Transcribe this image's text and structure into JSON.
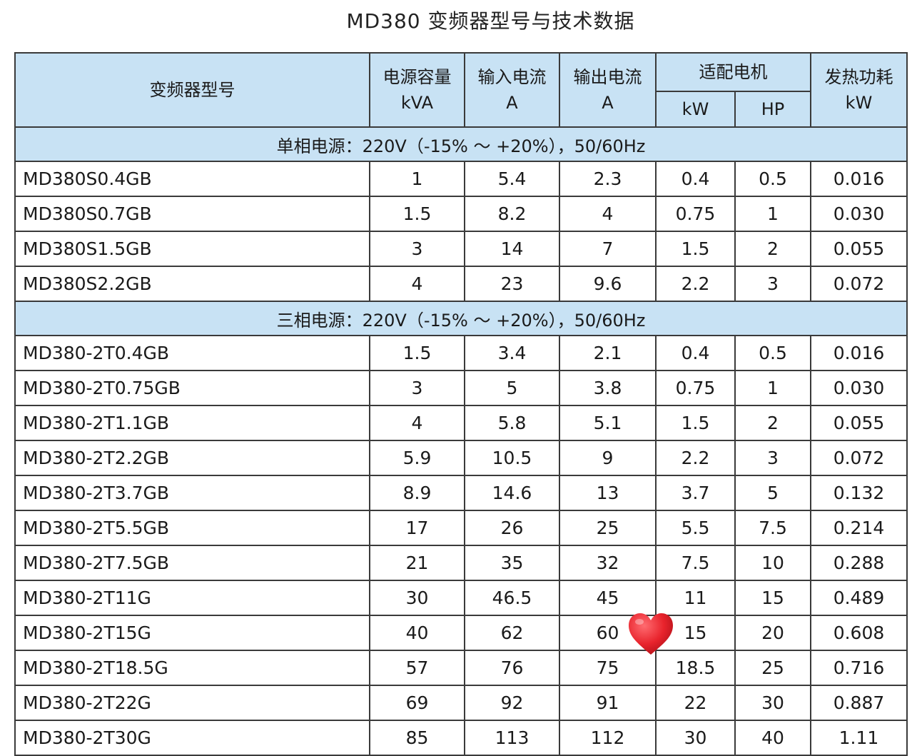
{
  "title": "MD380 变频器型号与技术数据",
  "header": {
    "model": "变频器型号",
    "capacity": [
      "电源容量",
      "kVA"
    ],
    "input_current": [
      "输入电流",
      "A"
    ],
    "output_current": [
      "输出电流",
      "A"
    ],
    "motor": "适配电机",
    "motor_kw": "kW",
    "motor_hp": "HP",
    "heat": [
      "发热功耗",
      "kW"
    ]
  },
  "sections": [
    {
      "label": "单相电源：220V（-15% ～ +20%），50/60Hz",
      "rows": [
        [
          "MD380S0.4GB",
          "1",
          "5.4",
          "2.3",
          "0.4",
          "0.5",
          "0.016"
        ],
        [
          "MD380S0.7GB",
          "1.5",
          "8.2",
          "4",
          "0.75",
          "1",
          "0.030"
        ],
        [
          "MD380S1.5GB",
          "3",
          "14",
          "7",
          "1.5",
          "2",
          "0.055"
        ],
        [
          "MD380S2.2GB",
          "4",
          "23",
          "9.6",
          "2.2",
          "3",
          "0.072"
        ]
      ]
    },
    {
      "label": "三相电源：220V（-15% ～ +20%），50/60Hz",
      "rows": [
        [
          "MD380-2T0.4GB",
          "1.5",
          "3.4",
          "2.1",
          "0.4",
          "0.5",
          "0.016"
        ],
        [
          "MD380-2T0.75GB",
          "3",
          "5",
          "3.8",
          "0.75",
          "1",
          "0.030"
        ],
        [
          "MD380-2T1.1GB",
          "4",
          "5.8",
          "5.1",
          "1.5",
          "2",
          "0.055"
        ],
        [
          "MD380-2T2.2GB",
          "5.9",
          "10.5",
          "9",
          "2.2",
          "3",
          "0.072"
        ],
        [
          "MD380-2T3.7GB",
          "8.9",
          "14.6",
          "13",
          "3.7",
          "5",
          "0.132"
        ],
        [
          "MD380-2T5.5GB",
          "17",
          "26",
          "25",
          "5.5",
          "7.5",
          "0.214"
        ],
        [
          "MD380-2T7.5GB",
          "21",
          "35",
          "32",
          "7.5",
          "10",
          "0.288"
        ],
        [
          "MD380-2T11G",
          "30",
          "46.5",
          "45",
          "11",
          "15",
          "0.489"
        ],
        [
          "MD380-2T15G",
          "40",
          "62",
          "60",
          "15",
          "20",
          "0.608"
        ],
        [
          "MD380-2T18.5G",
          "57",
          "76",
          "75",
          "18.5",
          "25",
          "0.716"
        ],
        [
          "MD380-2T22G",
          "69",
          "92",
          "91",
          "22",
          "30",
          "0.887"
        ],
        [
          "MD380-2T30G",
          "85",
          "113",
          "112",
          "30",
          "40",
          "1.11"
        ]
      ]
    }
  ],
  "colors": {
    "header_bg": "#c8e2f4",
    "border": "#3a3a3a",
    "heart": "#e8232c"
  },
  "icons": {
    "heart": "heart-icon"
  }
}
